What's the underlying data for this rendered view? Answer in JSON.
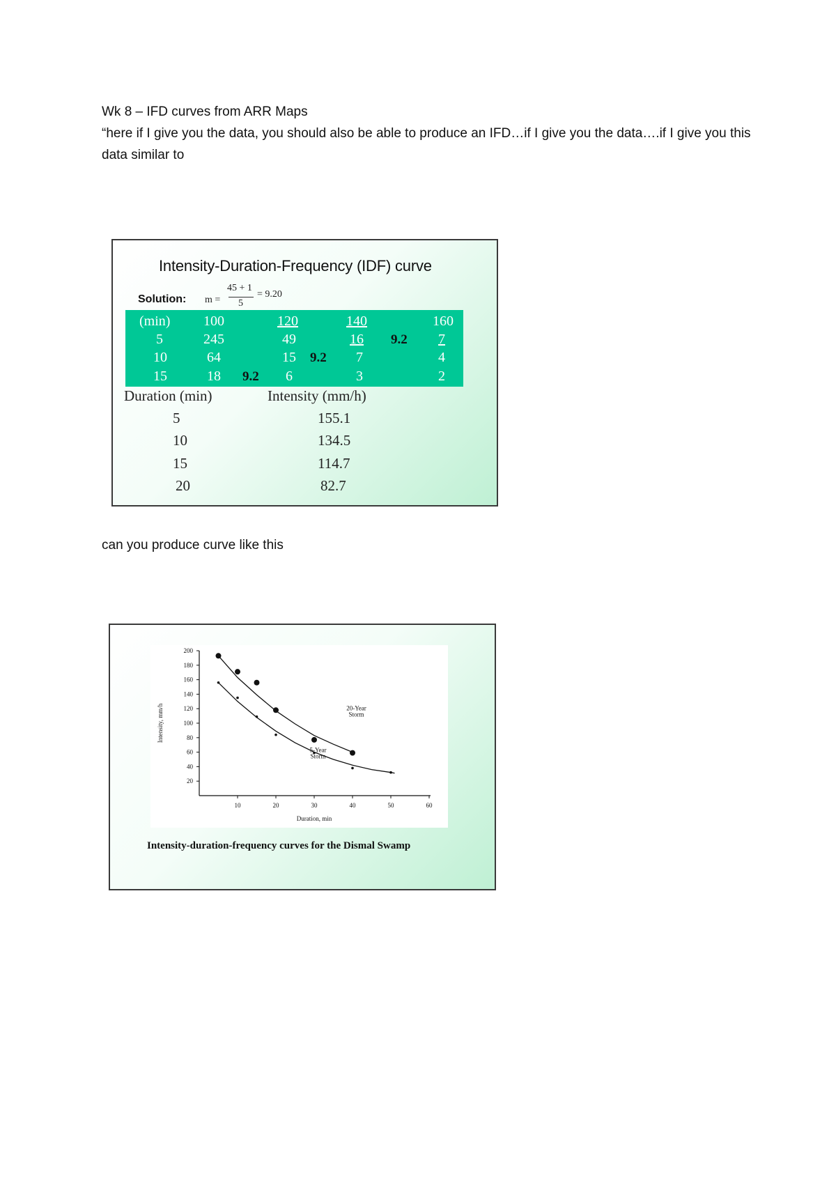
{
  "document": {
    "heading": "Wk  8 – IFD curves from ARR Maps",
    "intro": "“here if I give you the data, you should also be able to produce an IFD…if I give you the data….if I give you this data similar to",
    "second_text": "can you produce curve like this"
  },
  "slide1": {
    "title": "Intensity-Duration-Frequency (IDF) curve",
    "solution_label": "Solution:",
    "equation": {
      "lhs": "m =",
      "numerator": "45 + 1",
      "denominator": "5",
      "result": "= 9.20"
    },
    "table": {
      "header": [
        "(min)",
        "100",
        "120",
        "140",
        "160"
      ],
      "rows": [
        [
          "5",
          "245",
          "49",
          "16",
          "7"
        ],
        [
          "10",
          "64",
          "15",
          "7",
          "4"
        ],
        [
          "15",
          "18",
          "6",
          "3",
          "2"
        ]
      ],
      "interpolation_marks": [
        "9.2",
        "9.2",
        "9.2"
      ]
    },
    "result_headers": [
      "Duration (min)",
      "Intensity (mm/h)"
    ],
    "results": [
      {
        "duration": "5",
        "intensity": "155.1"
      },
      {
        "duration": "10",
        "intensity": "134.5"
      },
      {
        "duration": "15",
        "intensity": "114.7"
      },
      {
        "duration": "20",
        "intensity": "82.7"
      }
    ]
  },
  "slide2": {
    "caption": "Intensity-duration-frequency curves for the Dismal Swamp",
    "chart_data": {
      "type": "scatter",
      "xlabel": "Duration, min",
      "ylabel": "Intensity, mm/h",
      "xlim": [
        0,
        60
      ],
      "ylim": [
        0,
        200
      ],
      "x_ticks": [
        10,
        20,
        30,
        40,
        50,
        60
      ],
      "y_ticks": [
        20,
        40,
        60,
        80,
        100,
        120,
        140,
        160,
        180,
        200
      ],
      "grid": false,
      "series": [
        {
          "label_line1": "20-Year",
          "label_line2": "Storm",
          "label_at": [
            41,
            118
          ],
          "marker": "large-dot",
          "points": [
            [
              5,
              193
            ],
            [
              10,
              171
            ],
            [
              15,
              156
            ],
            [
              20,
              118
            ],
            [
              30,
              77
            ],
            [
              40,
              59
            ]
          ],
          "curve": [
            [
              5,
              193
            ],
            [
              10,
              163
            ],
            [
              15,
              139
            ],
            [
              20,
              117
            ],
            [
              25,
              99
            ],
            [
              30,
              83
            ],
            [
              35,
              71
            ],
            [
              40,
              60
            ]
          ]
        },
        {
          "label_line1": "5-Year",
          "label_line2": "Storm",
          "label_at": [
            31,
            60
          ],
          "marker": "small-dot",
          "points": [
            [
              5,
              156
            ],
            [
              10,
              135
            ],
            [
              15,
              109
            ],
            [
              20,
              84
            ],
            [
              30,
              59
            ],
            [
              40,
              38
            ],
            [
              50,
              32
            ]
          ],
          "curve": [
            [
              5,
              156
            ],
            [
              10,
              130
            ],
            [
              15,
              108
            ],
            [
              20,
              89
            ],
            [
              25,
              73
            ],
            [
              30,
              60
            ],
            [
              35,
              50
            ],
            [
              40,
              42
            ],
            [
              45,
              36
            ],
            [
              50,
              32
            ],
            [
              51,
              31
            ]
          ]
        }
      ]
    }
  }
}
